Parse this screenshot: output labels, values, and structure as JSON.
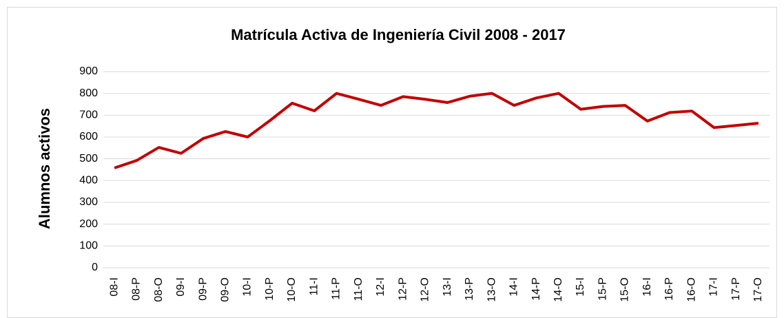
{
  "chart_data": {
    "type": "line",
    "title": "Matrícula Activa de Ingeniería Civil 2008 - 2017",
    "y_label": "Alumnos activos",
    "categories": [
      "08-I",
      "08-P",
      "08-O",
      "09-I",
      "09-P",
      "09-O",
      "10-I",
      "10-P",
      "10-O",
      "11-I",
      "11-P",
      "11-O",
      "12-I",
      "12-P",
      "12-O",
      "13-I",
      "13-P",
      "13-O",
      "14-I",
      "14-P",
      "14-O",
      "15-I",
      "15-P",
      "15-O",
      "16-I",
      "16-P",
      "16-O",
      "17-I",
      "17-P",
      "17-O"
    ],
    "series": [
      {
        "color": "#c00000",
        "values": [
          458,
          492,
          552,
          525,
          593,
          625,
          600,
          675,
          755,
          720,
          800,
          773,
          745,
          785,
          773,
          758,
          787,
          800,
          745,
          779,
          800,
          727,
          740,
          745,
          673,
          712,
          719,
          643,
          653,
          663
        ]
      }
    ],
    "ylim": [
      0,
      900
    ],
    "yticks": [
      0,
      100,
      200,
      300,
      400,
      500,
      600,
      700,
      800,
      900
    ],
    "grid": true
  }
}
